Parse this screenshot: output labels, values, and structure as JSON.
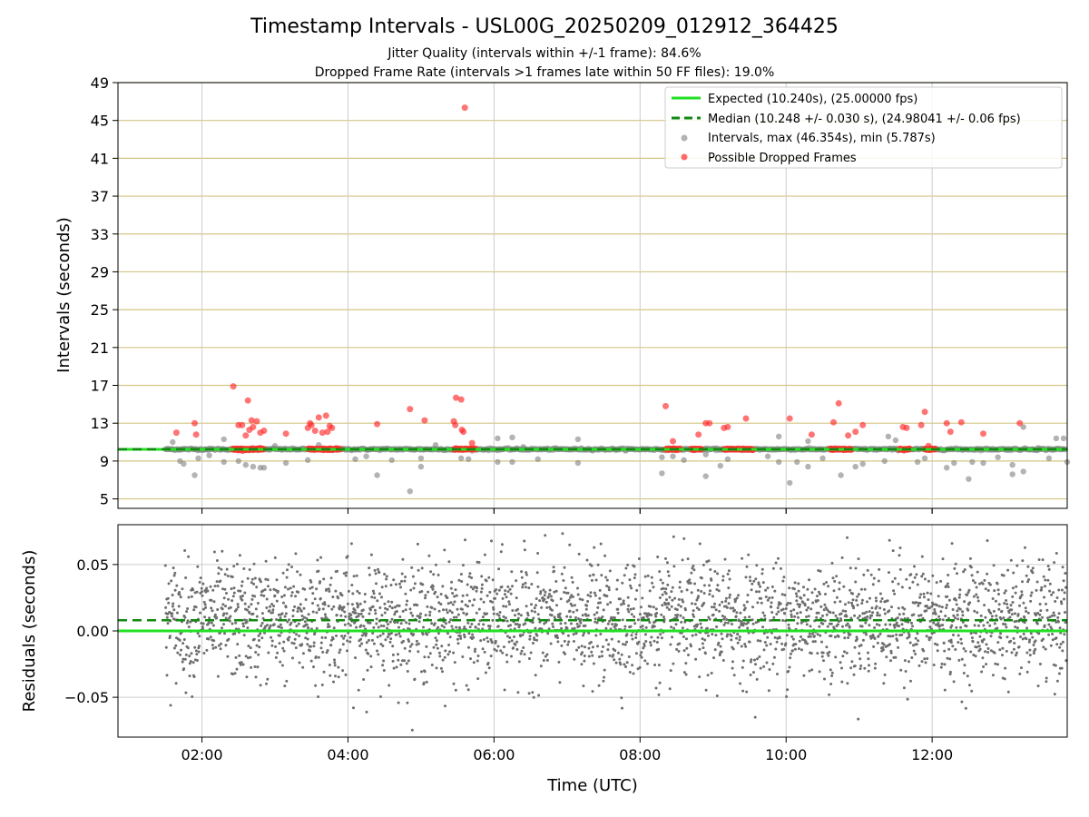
{
  "chart_data": {
    "type": "scatter",
    "title": "Timestamp Intervals - USL00G_20250209_012912_364425",
    "subtitle_1": "Jitter Quality (intervals within +/-1 frame): 84.6%",
    "subtitle_2": "Dropped Frame Rate (intervals >1 frames late within 50 FF files): 19.0%",
    "xlabel": "Time (UTC)",
    "x_range_hours": [
      0.85,
      13.85
    ],
    "x_ticks": [
      "02:00",
      "04:00",
      "06:00",
      "08:00",
      "10:00",
      "12:00"
    ],
    "top_panel": {
      "ylabel": "Intervals (seconds)",
      "ylim": [
        4,
        49
      ],
      "y_ticks": [
        "5",
        "9",
        "13",
        "17",
        "21",
        "25",
        "29",
        "33",
        "37",
        "41",
        "45",
        "49"
      ],
      "expected_interval": 10.24,
      "median_interval": 10.248,
      "legend": {
        "position": "top-right",
        "expected": "Expected (10.240s), (25.00000 fps)",
        "median": "Median (10.248 +/- 0.030 s), (24.98041 +/- 0.06 fps)",
        "intervals": "Intervals, max (46.354s), min (5.787s)",
        "dropped": "Possible Dropped Frames"
      },
      "normal_outliers": [
        [
          1.6,
          11.0
        ],
        [
          1.7,
          9.0
        ],
        [
          1.75,
          8.7
        ],
        [
          1.9,
          7.5
        ],
        [
          1.95,
          9.3
        ],
        [
          2.1,
          9.6
        ],
        [
          2.3,
          8.9
        ],
        [
          2.3,
          11.3
        ],
        [
          2.5,
          9.0
        ],
        [
          2.6,
          8.6
        ],
        [
          2.7,
          8.4
        ],
        [
          2.8,
          8.3
        ],
        [
          2.85,
          8.3
        ],
        [
          3.0,
          10.6
        ],
        [
          3.15,
          8.8
        ],
        [
          3.45,
          9.1
        ],
        [
          3.6,
          10.7
        ],
        [
          4.1,
          9.2
        ],
        [
          4.25,
          9.5
        ],
        [
          4.4,
          7.5
        ],
        [
          4.6,
          9.1
        ],
        [
          4.85,
          5.8
        ],
        [
          5.0,
          8.4
        ],
        [
          5.0,
          9.3
        ],
        [
          5.2,
          10.7
        ],
        [
          5.55,
          9.3
        ],
        [
          5.65,
          9.2
        ],
        [
          6.05,
          8.9
        ],
        [
          6.05,
          11.4
        ],
        [
          6.25,
          8.9
        ],
        [
          6.25,
          11.5
        ],
        [
          6.4,
          10.5
        ],
        [
          6.6,
          9.2
        ],
        [
          7.15,
          11.3
        ],
        [
          7.15,
          8.8
        ],
        [
          8.3,
          7.7
        ],
        [
          8.3,
          9.4
        ],
        [
          8.45,
          9.5
        ],
        [
          8.6,
          9.1
        ],
        [
          8.9,
          7.4
        ],
        [
          8.9,
          9.7
        ],
        [
          9.1,
          8.5
        ],
        [
          9.2,
          9.2
        ],
        [
          9.75,
          9.5
        ],
        [
          9.9,
          8.9
        ],
        [
          9.9,
          11.6
        ],
        [
          10.05,
          6.7
        ],
        [
          10.15,
          8.9
        ],
        [
          10.3,
          8.4
        ],
        [
          10.3,
          11.1
        ],
        [
          10.5,
          9.3
        ],
        [
          10.75,
          7.5
        ],
        [
          10.95,
          8.4
        ],
        [
          11.05,
          8.7
        ],
        [
          11.35,
          9.0
        ],
        [
          11.4,
          11.6
        ],
        [
          11.5,
          11.2
        ],
        [
          11.8,
          8.9
        ],
        [
          11.9,
          9.3
        ],
        [
          12.2,
          8.3
        ],
        [
          12.3,
          8.8
        ],
        [
          12.5,
          7.1
        ],
        [
          12.55,
          8.9
        ],
        [
          12.7,
          8.8
        ],
        [
          12.9,
          9.4
        ],
        [
          13.1,
          8.6
        ],
        [
          13.1,
          7.6
        ],
        [
          13.25,
          7.9
        ],
        [
          13.25,
          12.6
        ],
        [
          13.45,
          10.4
        ],
        [
          13.6,
          9.3
        ],
        [
          13.7,
          11.4
        ],
        [
          13.8,
          11.4
        ],
        [
          13.85,
          8.9
        ]
      ],
      "dropped_points": [
        [
          1.65,
          12.0
        ],
        [
          1.9,
          13.0
        ],
        [
          1.92,
          11.8
        ],
        [
          2.43,
          16.9
        ],
        [
          2.5,
          12.8
        ],
        [
          2.55,
          12.8
        ],
        [
          2.6,
          11.7
        ],
        [
          2.63,
          15.4
        ],
        [
          2.65,
          12.3
        ],
        [
          2.68,
          13.3
        ],
        [
          2.7,
          12.6
        ],
        [
          2.75,
          13.2
        ],
        [
          2.8,
          12.0
        ],
        [
          2.85,
          12.2
        ],
        [
          3.15,
          11.9
        ],
        [
          3.45,
          12.5
        ],
        [
          3.48,
          13.0
        ],
        [
          3.5,
          12.8
        ],
        [
          3.55,
          12.2
        ],
        [
          3.6,
          13.6
        ],
        [
          3.65,
          12.0
        ],
        [
          3.7,
          13.8
        ],
        [
          3.72,
          12.1
        ],
        [
          3.75,
          12.7
        ],
        [
          3.78,
          12.5
        ],
        [
          4.4,
          12.9
        ],
        [
          4.85,
          14.5
        ],
        [
          5.05,
          13.3
        ],
        [
          5.45,
          13.2
        ],
        [
          5.47,
          12.8
        ],
        [
          5.48,
          15.7
        ],
        [
          5.55,
          15.5
        ],
        [
          5.56,
          12.3
        ],
        [
          5.58,
          12.1
        ],
        [
          5.6,
          46.35
        ],
        [
          5.7,
          10.9
        ],
        [
          8.35,
          14.8
        ],
        [
          8.45,
          11.1
        ],
        [
          8.8,
          11.8
        ],
        [
          8.9,
          13.0
        ],
        [
          8.95,
          13.0
        ],
        [
          9.15,
          12.5
        ],
        [
          9.2,
          12.6
        ],
        [
          9.45,
          13.5
        ],
        [
          10.05,
          13.5
        ],
        [
          10.35,
          11.8
        ],
        [
          10.65,
          13.1
        ],
        [
          10.72,
          15.1
        ],
        [
          10.85,
          11.7
        ],
        [
          10.95,
          12.1
        ],
        [
          11.05,
          12.8
        ],
        [
          11.6,
          12.6
        ],
        [
          11.65,
          12.5
        ],
        [
          11.85,
          12.8
        ],
        [
          11.9,
          14.2
        ],
        [
          11.95,
          10.6
        ],
        [
          12.2,
          13.0
        ],
        [
          12.25,
          12.1
        ],
        [
          12.4,
          13.1
        ],
        [
          12.7,
          11.9
        ],
        [
          13.2,
          13.0
        ]
      ],
      "dropped_clusters": [
        [
          2.42,
          2.85
        ],
        [
          3.45,
          3.9
        ],
        [
          5.45,
          5.75
        ],
        [
          8.35,
          8.55
        ],
        [
          8.7,
          8.85
        ],
        [
          9.15,
          9.55
        ],
        [
          10.6,
          10.9
        ],
        [
          11.55,
          11.7
        ],
        [
          11.9,
          12.05
        ]
      ],
      "data_start_hour": 1.5
    },
    "bottom_panel": {
      "ylabel": "Residuals (seconds)",
      "ylim": [
        -0.08,
        0.08
      ],
      "y_ticks": [
        "−0.05",
        "0.00",
        "0.05"
      ],
      "y_tick_values": [
        -0.05,
        0.0,
        0.05
      ],
      "expected_residual": 0.0,
      "median_residual": 0.008,
      "residual_std": 0.022
    },
    "colors": {
      "expected": "#22e022",
      "median": "#118811",
      "intervals": "#808080",
      "dropped": "#ff2a2a",
      "hgrid": "#d4c586",
      "vgrid": "#cccccc"
    }
  }
}
